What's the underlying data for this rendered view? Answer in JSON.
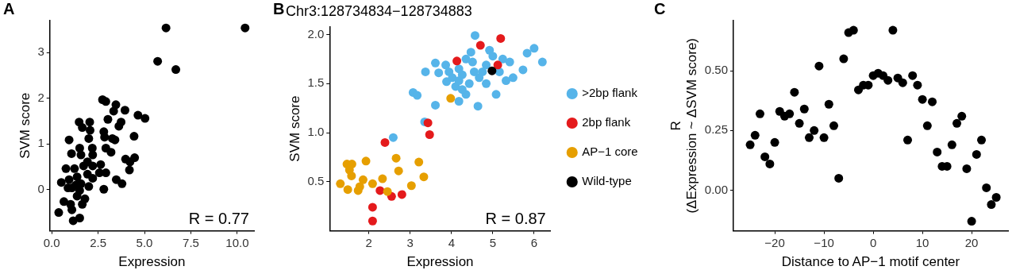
{
  "chart_data": [
    {
      "type": "scatter",
      "xlabel": "Expression",
      "ylabel": "SVM score",
      "annotations": [
        "A",
        "R = 0.77"
      ],
      "xlim": [
        -0.1,
        10.9
      ],
      "ylim": [
        -0.9,
        3.7
      ],
      "xticks": [
        {
          "value": 0,
          "label": "0.0"
        },
        {
          "value": 2.5,
          "label": "2.5"
        },
        {
          "value": 5,
          "label": "5.0"
        },
        {
          "value": 7.5,
          "label": "7.5"
        },
        {
          "value": 10,
          "label": "10.0"
        }
      ],
      "yticks": [
        0,
        1,
        2,
        3
      ],
      "grid": false,
      "legend": false,
      "marker": "circle",
      "series": [
        {
          "color": "#000000",
          "x": [
            6.16,
            10.42,
            5.71,
            6.69,
            2.74,
            2.92,
            3.46,
            3.95,
            3.03,
            3.34,
            3.74,
            3.62,
            4.65,
            5.03,
            1.48,
            2.05,
            1.65,
            2.07,
            2.0,
            2.81,
            2.85,
            3.27,
            3.41,
            4.44,
            0.94,
            1.07,
            1.51,
            1.58,
            2.19,
            2.21,
            2.92,
            3.2,
            3.98,
            4.47,
            4.22,
            4.19,
            0.77,
            2.64,
            2.92,
            2.57,
            0.52,
            3.48,
            3.79,
            2.81,
            0.38,
            0.66,
            1.16,
            1.51,
            1.02,
            1.79,
            1.65,
            1.09,
            1.37,
            1.23,
            1.93,
            2.21,
            2.0,
            1.51,
            1.3,
            1.72,
            0.88,
            0.94,
            1.93,
            2.21,
            1.37,
            1.09,
            1.58
          ],
          "values": [
            3.54,
            3.54,
            2.81,
            2.63,
            1.97,
            1.93,
            1.86,
            1.74,
            1.54,
            1.72,
            1.48,
            1.39,
            1.63,
            1.56,
            1.48,
            1.48,
            1.36,
            1.3,
            1.12,
            1.27,
            1.15,
            1.12,
            1.09,
            1.17,
            1.09,
            0.79,
            0.91,
            0.76,
            0.91,
            0.76,
            0.91,
            0.82,
            0.67,
            0.7,
            0.61,
            0.43,
            0.46,
            0.55,
            0.37,
            0.37,
            0.16,
            0.22,
            0.13,
            0.01,
            -0.5,
            -0.26,
            -0.68,
            -0.62,
            -0.32,
            -0.2,
            -0.32,
            0.04,
            0.28,
            0.46,
            0.34,
            0.25,
            0.07,
            -0.02,
            0.1,
            0.52,
            0.04,
            0.22,
            0.61,
            0.52,
            -0.14,
            -0.44,
            0.13
          ]
        }
      ]
    },
    {
      "type": "scatter",
      "title": "Chr3:128734834−128734883",
      "xlabel": "Expression",
      "ylabel": "SVM score",
      "annotations": [
        "B",
        "R = 0.87"
      ],
      "xlim": [
        1.05,
        6.4
      ],
      "ylim": [
        0,
        2.08
      ],
      "xticks": [
        2,
        3,
        4,
        5,
        6
      ],
      "yticks": [
        {
          "value": 0.5,
          "label": "0.5"
        },
        {
          "value": 1,
          "label": "1.0"
        },
        {
          "value": 1.5,
          "label": "1.5"
        },
        {
          "value": 2,
          "label": "2.0"
        }
      ],
      "grid": false,
      "legend": "right",
      "marker": "circle",
      "series": [
        {
          "name": ">2bp flank",
          "color": "#56b4e9",
          "x": [
            2.59,
            3.35,
            3.07,
            3.17,
            3.61,
            3.37,
            3.61,
            3.88,
            3.94,
            4.18,
            4.18,
            4.35,
            4.64,
            4.57,
            4.47,
            4.92,
            5.08,
            5.32,
            5.49,
            5.73,
            5.83,
            6.0,
            6.2,
            4.02,
            4.26,
            4.43,
            4.67,
            4.84,
            4.51,
            4.35,
            3.86,
            4.84,
            5.16,
            5.41,
            5.24,
            5.0,
            4.1,
            4.26,
            4.75,
            4.55,
            4.18,
            3.69
          ],
          "values": [
            0.95,
            1.11,
            1.41,
            1.38,
            1.28,
            1.62,
            1.71,
            1.52,
            1.62,
            1.65,
            1.32,
            1.39,
            1.27,
            1.99,
            1.82,
            1.84,
            1.39,
            1.53,
            1.56,
            1.64,
            1.81,
            1.86,
            1.72,
            1.56,
            1.59,
            1.5,
            1.56,
            1.69,
            1.72,
            1.75,
            1.69,
            1.5,
            1.62,
            1.72,
            1.75,
            1.78,
            1.47,
            1.44,
            1.62,
            1.62,
            1.53,
            1.61
          ]
        },
        {
          "name": "2bp flank",
          "color": "#e41a1c",
          "x": [
            2.09,
            2.09,
            2.27,
            2.55,
            2.8,
            2.39,
            3.43,
            3.47,
            4.13,
            4.7,
            5.19,
            5.12
          ],
          "values": [
            0.1,
            0.24,
            0.41,
            0.35,
            0.37,
            0.9,
            1.1,
            0.98,
            1.73,
            1.89,
            1.96,
            1.69
          ]
        },
        {
          "name": "AP−1 core",
          "color": "#e69f00",
          "x": [
            1.31,
            1.49,
            1.47,
            1.59,
            1.53,
            1.58,
            1.74,
            1.78,
            1.86,
            1.93,
            2.09,
            2.33,
            2.45,
            2.66,
            2.72,
            3.03,
            3.21,
            3.33,
            3.98
          ],
          "values": [
            0.48,
            0.42,
            0.68,
            0.68,
            0.62,
            0.56,
            0.41,
            0.45,
            0.52,
            0.71,
            0.48,
            0.53,
            0.4,
            0.74,
            0.61,
            0.46,
            0.7,
            0.55,
            1.35
          ]
        },
        {
          "name": "Wild-type",
          "color": "#000000",
          "x": [
            4.98
          ],
          "values": [
            1.63
          ]
        }
      ]
    },
    {
      "type": "scatter",
      "xlabel": "Distance to AP−1 motif center",
      "ylabel": "R\n(ΔExpression ~ ΔSVM score)",
      "annotations": [
        "C"
      ],
      "xlim": [
        -28.4,
        27.4
      ],
      "ylim": [
        -0.17,
        0.71
      ],
      "xticks": [
        {
          "value": -20,
          "label": "−20"
        },
        {
          "value": -10,
          "label": "−10"
        },
        0,
        10,
        20
      ],
      "yticks": [
        {
          "value": 0,
          "label": "0.00"
        },
        {
          "value": 0.25,
          "label": "0.25"
        },
        {
          "value": 0.5,
          "label": "0.50"
        }
      ],
      "grid": false,
      "legend": false,
      "marker": "circle",
      "series": [
        {
          "color": "#000000",
          "x": [
            -25,
            -24,
            -23,
            -22,
            -21,
            -20,
            -19,
            -18,
            -17,
            -16,
            -15,
            -14,
            -13,
            -12,
            -11,
            -10,
            -9,
            -8,
            -7,
            -6,
            -5,
            -4,
            -3,
            -2,
            -1,
            0,
            1,
            2,
            3,
            4,
            5,
            6,
            7,
            8,
            9,
            10,
            11,
            12,
            13,
            14,
            15,
            16,
            17,
            18,
            19,
            20,
            21,
            22,
            23,
            24,
            25
          ],
          "values": [
            0.19,
            0.23,
            0.32,
            0.14,
            0.11,
            0.2,
            0.33,
            0.31,
            0.32,
            0.41,
            0.28,
            0.34,
            0.22,
            0.25,
            0.52,
            0.22,
            0.36,
            0.27,
            0.05,
            0.55,
            0.66,
            0.67,
            0.42,
            0.44,
            0.44,
            0.48,
            0.49,
            0.48,
            0.46,
            0.67,
            0.47,
            0.45,
            0.21,
            0.48,
            0.44,
            0.38,
            0.27,
            0.37,
            0.16,
            0.1,
            0.1,
            0.19,
            0.28,
            0.31,
            0.09,
            -0.13,
            0.15,
            0.21,
            0.01,
            -0.06,
            -0.03
          ]
        }
      ]
    }
  ]
}
